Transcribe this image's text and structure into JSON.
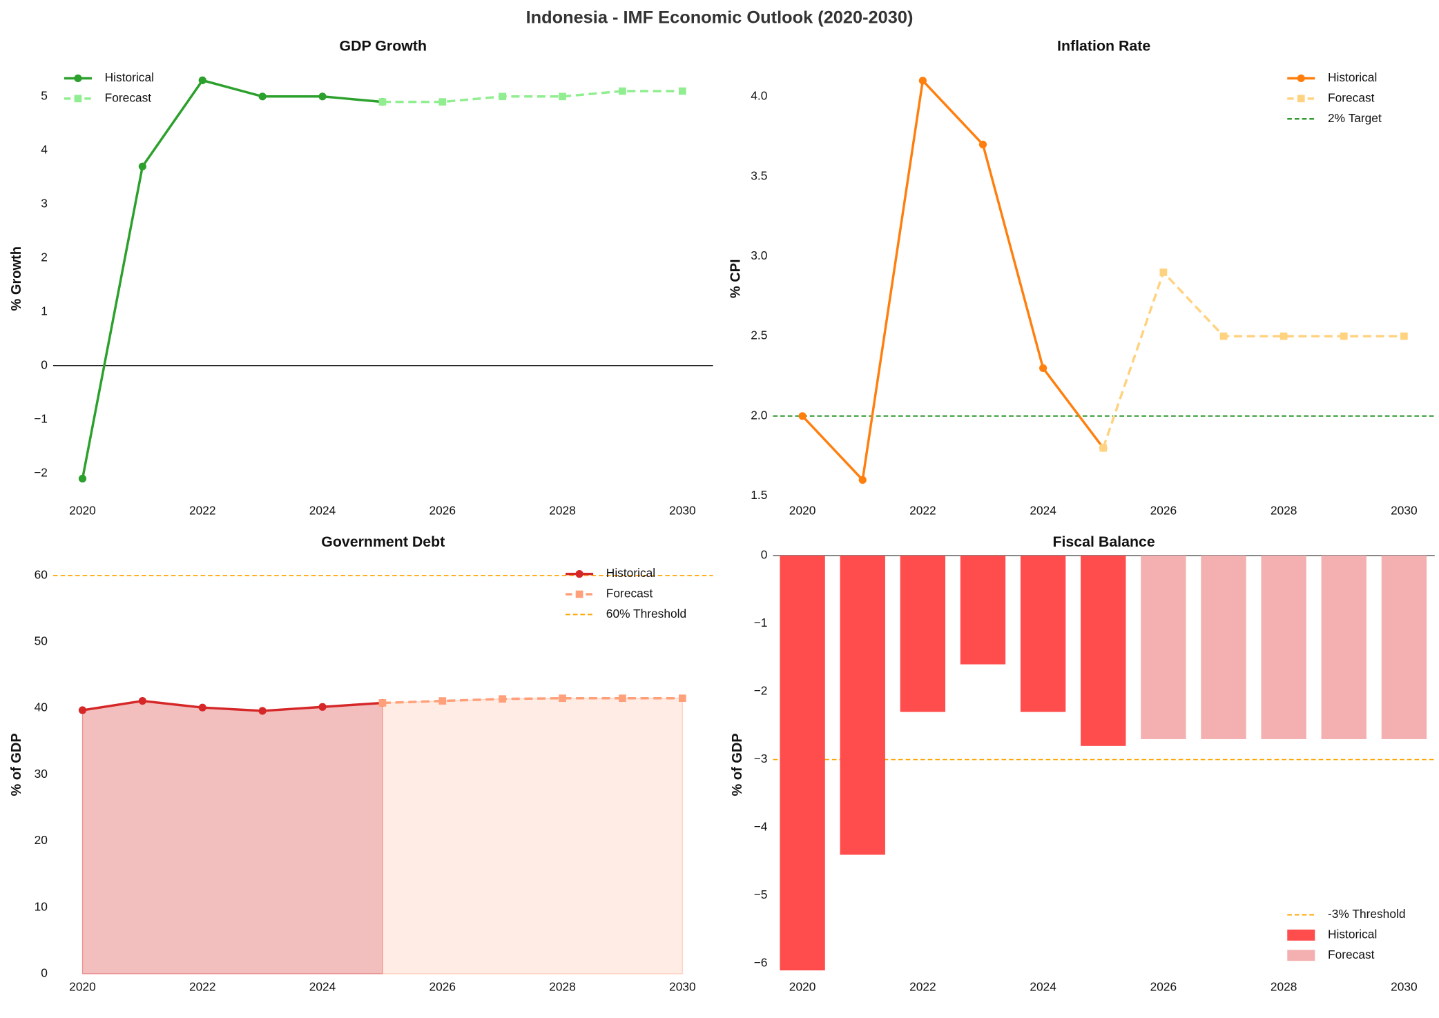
{
  "title": "Indonesia - IMF Economic Outlook (2020-2030)",
  "chart_data": [
    {
      "type": "line",
      "title": "GDP Growth",
      "y_label": "% Growth",
      "x": [
        2020,
        2021,
        2022,
        2023,
        2024,
        2025,
        2026,
        2027,
        2028,
        2029,
        2030
      ],
      "xlim": [
        2019.51,
        2030.51
      ],
      "xticks": [
        2020,
        2022,
        2024,
        2026,
        2028,
        2030
      ],
      "ylim": [
        -2.45,
        5.68
      ],
      "yticks": [
        {
          "value": -2,
          "label": "−2"
        },
        {
          "value": -1,
          "label": "−1"
        },
        0,
        1,
        2,
        3,
        4,
        5
      ],
      "zero_line": true,
      "legend": "upper left",
      "series": [
        {
          "name": "Historical",
          "color": "#2ca02c",
          "marker": "circle",
          "linestyle": "solid",
          "values": [
            -2.1,
            3.7,
            5.3,
            5.0,
            5.0,
            4.9,
            null,
            null,
            null,
            null,
            null
          ]
        },
        {
          "name": "Forecast",
          "color": "#90ee90",
          "marker": "square",
          "linestyle": "dashed",
          "values": [
            null,
            null,
            null,
            null,
            null,
            4.9,
            4.9,
            5.0,
            5.0,
            5.1,
            5.1
          ]
        }
      ]
    },
    {
      "type": "line",
      "title": "Inflation Rate",
      "y_label": "% CPI",
      "x": [
        2020,
        2021,
        2022,
        2023,
        2024,
        2025,
        2026,
        2027,
        2028,
        2029,
        2030
      ],
      "xlim": [
        2019.51,
        2030.51
      ],
      "xticks": [
        2020,
        2022,
        2024,
        2026,
        2028,
        2030
      ],
      "ylim": [
        1.49,
        4.23
      ],
      "yticks": [
        1.5,
        {
          "value": 2,
          "label": "2.0"
        },
        2.5,
        {
          "value": 3,
          "label": "3.0"
        },
        3.5,
        {
          "value": 4,
          "label": "4.0"
        }
      ],
      "legend": "upper right",
      "reference": {
        "value": 2,
        "label": "2% Target",
        "color": "#008000"
      },
      "series": [
        {
          "name": "Historical",
          "color": "#ff7f0e",
          "marker": "circle",
          "linestyle": "solid",
          "values": [
            2.0,
            1.6,
            4.1,
            3.7,
            2.3,
            1.8,
            null,
            null,
            null,
            null,
            null
          ]
        },
        {
          "name": "Forecast",
          "color": "#ffd280",
          "marker": "square",
          "linestyle": "dashed",
          "values": [
            null,
            null,
            null,
            null,
            null,
            1.8,
            2.9,
            2.5,
            2.5,
            2.5,
            2.5
          ]
        }
      ]
    },
    {
      "type": "area",
      "title": "Government Debt",
      "y_label": "% of GDP",
      "x": [
        2020,
        2021,
        2022,
        2023,
        2024,
        2025,
        2026,
        2027,
        2028,
        2029,
        2030
      ],
      "xlim": [
        2019.51,
        2030.51
      ],
      "xticks": [
        2020,
        2022,
        2024,
        2026,
        2028,
        2030
      ],
      "ylim": [
        0,
        63
      ],
      "yticks": [
        0,
        10,
        20,
        30,
        40,
        50,
        60
      ],
      "legend": "upper right",
      "reference": {
        "value": 60,
        "label": "60% Threshold",
        "color": "#ffa500"
      },
      "series": [
        {
          "name": "Historical",
          "color": "#d62728",
          "marker": "circle",
          "linestyle": "solid",
          "values": [
            39.7,
            41.1,
            40.1,
            39.6,
            40.2,
            40.8,
            null,
            null,
            null,
            null,
            null
          ]
        },
        {
          "name": "Forecast",
          "color": "#ffa07a",
          "marker": "square",
          "linestyle": "dashed",
          "values": [
            null,
            null,
            null,
            null,
            null,
            40.8,
            41.1,
            41.4,
            41.5,
            41.5,
            41.5
          ]
        }
      ]
    },
    {
      "type": "bar",
      "title": "Fiscal Balance",
      "y_label": "% of GDP",
      "x": [
        2020,
        2021,
        2022,
        2023,
        2024,
        2025,
        2026,
        2027,
        2028,
        2029,
        2030
      ],
      "xlim": [
        2019.51,
        2030.51
      ],
      "xticks": [
        2020,
        2022,
        2024,
        2026,
        2028,
        2030
      ],
      "ylim": [
        -6.15,
        0
      ],
      "yticks": [
        {
          "value": -6,
          "label": "−6"
        },
        {
          "value": -5,
          "label": "−5"
        },
        {
          "value": -4,
          "label": "−4"
        },
        {
          "value": -3,
          "label": "−3"
        },
        {
          "value": -2,
          "label": "−2"
        },
        {
          "value": -1,
          "label": "−1"
        },
        0
      ],
      "zero_line": true,
      "legend": "lower right",
      "reference": {
        "value": -3,
        "label": "-3% Threshold",
        "color": "#ffa500"
      },
      "series": [
        {
          "name": "Historical",
          "color": "#ff4c4c",
          "values": [
            -6.1,
            -4.4,
            -2.3,
            -1.6,
            -2.3,
            -2.8,
            null,
            null,
            null,
            null,
            null
          ]
        },
        {
          "name": "Forecast",
          "color": "#f4b0b0",
          "values": [
            null,
            null,
            null,
            null,
            null,
            null,
            -2.7,
            -2.7,
            -2.7,
            -2.7,
            -2.7
          ]
        }
      ]
    }
  ]
}
